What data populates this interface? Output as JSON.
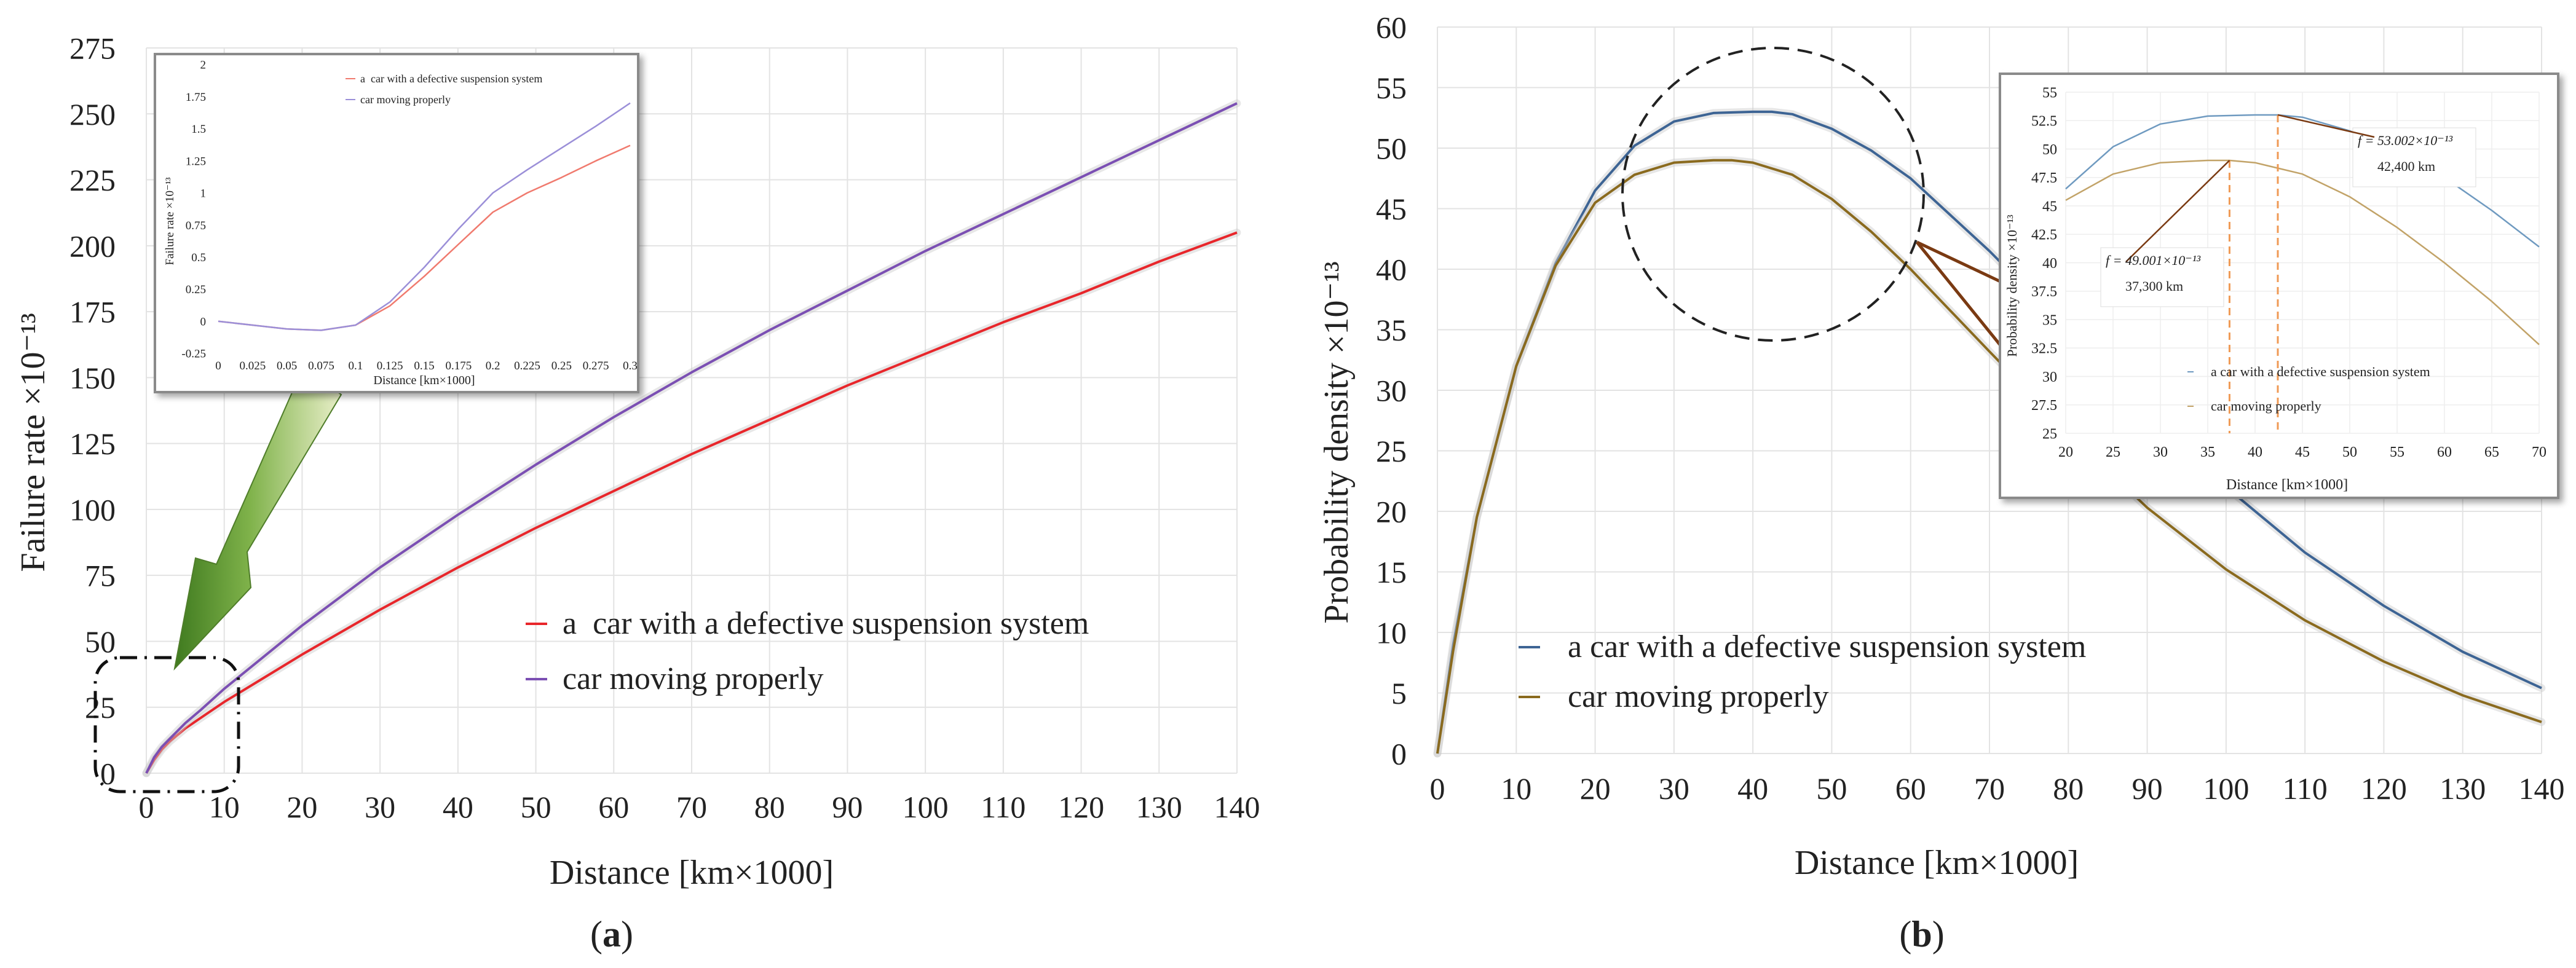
{
  "colors": {
    "defective_a": "#e8262b",
    "proper_a": "#7b4fb3",
    "defective_b": "#3d6494",
    "proper_b": "#8a6a1e",
    "grid": "#e3e3e3",
    "inset_defective_a": "#f07a6e",
    "inset_proper_a": "#9b8fd8",
    "inset_defective_b": "#6f9ac0",
    "inset_proper_b": "#c2a368",
    "arrow_green": "#5f9a32",
    "callout_brown": "#7a3a12",
    "dashed_orange": "#ef9a55"
  },
  "icons": {
    "arrow": "green-arrow-icon"
  },
  "chart_data": [
    {
      "id": "a",
      "panel_label": "(a)",
      "panel_letter": "a",
      "type": "line",
      "title": "",
      "xlabel": "Distance [km×1000]",
      "ylabel": "Failure rate ×10⁻¹³",
      "xlim": [
        0,
        140
      ],
      "ylim": [
        0,
        275
      ],
      "xticks": [
        "0",
        "10",
        "20",
        "30",
        "40",
        "50",
        "60",
        "70",
        "80",
        "90",
        "100",
        "110",
        "120",
        "130",
        "140"
      ],
      "yticks": [
        "0",
        "25",
        "50",
        "75",
        "100",
        "125",
        "150",
        "175",
        "200",
        "225",
        "250",
        "275"
      ],
      "legend": [
        "a  car with a defective suspension system",
        "car moving properly"
      ],
      "series": [
        {
          "name": "a  car with a defective suspension system",
          "x": [
            0,
            1,
            2,
            3,
            5,
            7,
            10,
            15,
            20,
            30,
            40,
            50,
            60,
            70,
            80,
            90,
            100,
            110,
            120,
            130,
            140
          ],
          "y": [
            0,
            5,
            9,
            12,
            17,
            21,
            27,
            36,
            45,
            62,
            78,
            93,
            107,
            121,
            134,
            147,
            159,
            171,
            182,
            194,
            205
          ]
        },
        {
          "name": "car moving properly",
          "x": [
            0,
            1,
            2,
            3,
            5,
            7,
            10,
            15,
            20,
            30,
            40,
            50,
            60,
            70,
            80,
            90,
            100,
            110,
            120,
            130,
            140
          ],
          "y": [
            0,
            6,
            10,
            13,
            19,
            24,
            32,
            44,
            56,
            78,
            98,
            117,
            135,
            152,
            168,
            183,
            198,
            212,
            226,
            240,
            254
          ]
        }
      ],
      "inset": {
        "type": "line",
        "xlabel": "Distance [km×1000]",
        "ylabel": "Failure rate ×10⁻¹³",
        "xlim": [
          0,
          0.3
        ],
        "ylim": [
          -0.25,
          2
        ],
        "xticks": [
          "0",
          "0.025",
          "0.05",
          "0.075",
          "0.1",
          "0.125",
          "0.15",
          "0.175",
          "0.2",
          "0.225",
          "0.25",
          "0.275",
          "0.3"
        ],
        "yticks": [
          "-0.25",
          "0",
          "0.25",
          "0.5",
          "0.75",
          "1",
          "1.25",
          "1.5",
          "1.75",
          "2"
        ],
        "legend": [
          "a  car with a defective suspension system",
          "car moving properly"
        ],
        "series": [
          {
            "name": "a  car with a defective suspension system",
            "x": [
              0,
              0.025,
              0.05,
              0.075,
              0.1,
              0.125,
              0.15,
              0.175,
              0.2,
              0.225,
              0.25,
              0.275,
              0.3
            ],
            "y": [
              0,
              -0.03,
              -0.06,
              -0.07,
              -0.03,
              0.12,
              0.35,
              0.6,
              0.85,
              1.0,
              1.12,
              1.25,
              1.37
            ]
          },
          {
            "name": "car moving properly",
            "x": [
              0,
              0.025,
              0.05,
              0.075,
              0.1,
              0.125,
              0.15,
              0.175,
              0.2,
              0.225,
              0.25,
              0.275,
              0.3
            ],
            "y": [
              0,
              -0.03,
              -0.06,
              -0.07,
              -0.03,
              0.15,
              0.42,
              0.72,
              1.0,
              1.18,
              1.35,
              1.52,
              1.7
            ]
          }
        ]
      }
    },
    {
      "id": "b",
      "panel_label": "(b)",
      "panel_letter": "b",
      "type": "line",
      "title": "",
      "xlabel": "Distance [km×1000]",
      "ylabel": "Probability density ×10⁻¹³",
      "xlim": [
        0,
        140
      ],
      "ylim": [
        0,
        60
      ],
      "xticks": [
        "0",
        "10",
        "20",
        "30",
        "40",
        "50",
        "60",
        "70",
        "80",
        "90",
        "100",
        "110",
        "120",
        "130",
        "140"
      ],
      "yticks": [
        "0",
        "5",
        "10",
        "15",
        "20",
        "25",
        "30",
        "35",
        "40",
        "45",
        "50",
        "55",
        "60"
      ],
      "legend": [
        "a car with a defective suspension system",
        "car moving properly"
      ],
      "series": [
        {
          "name": "a car with a defective suspension system",
          "x": [
            0,
            2,
            5,
            10,
            15,
            20,
            25,
            30,
            35,
            40,
            42.4,
            45,
            50,
            55,
            60,
            70,
            80,
            90,
            100,
            110,
            120,
            130,
            140
          ],
          "y": [
            0,
            9,
            19.5,
            32,
            40.5,
            46.5,
            50.2,
            52.2,
            52.9,
            53.0,
            53.0,
            52.8,
            51.6,
            49.8,
            47.5,
            41.5,
            34.9,
            28.2,
            22.0,
            16.6,
            12.2,
            8.4,
            5.4
          ]
        },
        {
          "name": "car moving properly",
          "x": [
            0,
            2,
            5,
            10,
            15,
            20,
            25,
            30,
            35,
            37.3,
            40,
            45,
            50,
            55,
            60,
            70,
            80,
            90,
            100,
            110,
            120,
            130,
            140
          ],
          "y": [
            0,
            8.5,
            19.5,
            32,
            40.3,
            45.5,
            47.8,
            48.8,
            49.0,
            49.0,
            48.8,
            47.8,
            45.8,
            43.1,
            40.0,
            33.2,
            26.5,
            20.3,
            15.2,
            11.0,
            7.6,
            4.8,
            2.6
          ]
        }
      ],
      "inset": {
        "type": "line",
        "xlabel": "Distance [km×1000]",
        "ylabel": "Probability density ×10⁻¹³",
        "xlim": [
          20,
          70
        ],
        "ylim": [
          25,
          55
        ],
        "xticks": [
          "20",
          "25",
          "30",
          "35",
          "40",
          "45",
          "50",
          "55",
          "60",
          "65",
          "70"
        ],
        "yticks": [
          "25",
          "27.5",
          "30",
          "32.5",
          "35",
          "37.5",
          "40",
          "42.5",
          "45",
          "47.5",
          "50",
          "52.5",
          "55"
        ],
        "legend": [
          "a car with a defective suspension system",
          "car moving properly"
        ],
        "series": [
          {
            "name": "a car with a defective suspension system",
            "x": [
              20,
              25,
              30,
              35,
              40,
              42.4,
              45,
              50,
              55,
              60,
              65,
              70
            ],
            "y": [
              46.5,
              50.2,
              52.2,
              52.9,
              53.0,
              53.0,
              52.8,
              51.6,
              49.8,
              47.5,
              44.6,
              41.4
            ]
          },
          {
            "name": "car moving properly",
            "x": [
              20,
              25,
              30,
              35,
              37.3,
              40,
              45,
              50,
              55,
              60,
              65,
              70
            ],
            "y": [
              45.5,
              47.8,
              48.8,
              49.0,
              49.0,
              48.8,
              47.8,
              45.8,
              43.1,
              40.0,
              36.6,
              32.8
            ]
          }
        ],
        "annotations": [
          {
            "f_label": "f = 53.002×10⁻¹³",
            "dist_label": "42,400 km",
            "x": 42.4,
            "y": 53.002
          },
          {
            "f_label": "f = 49.001×10⁻¹³",
            "dist_label": "37,300 km",
            "x": 37.3,
            "y": 49.001
          }
        ]
      }
    }
  ]
}
